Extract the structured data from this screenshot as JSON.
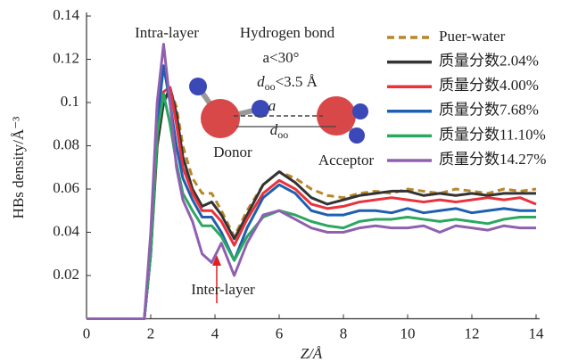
{
  "chart_data": {
    "type": "line",
    "xlabel": "Z/Å",
    "ylabel": "HBs density/Å⁻³",
    "x": [
      0,
      1.8,
      2.0,
      2.2,
      2.4,
      2.6,
      2.8,
      3.0,
      3.3,
      3.6,
      3.9,
      4.2,
      4.6,
      5.0,
      5.5,
      6.0,
      6.5,
      7.0,
      7.5,
      8.0,
      8.5,
      9.0,
      9.5,
      10,
      10.5,
      11,
      11.5,
      12,
      12.5,
      13,
      13.5,
      14
    ],
    "xlim": [
      0,
      14
    ],
    "xticks": [
      0,
      2,
      4,
      6,
      8,
      10,
      12,
      14
    ],
    "ylim": [
      0,
      0.14
    ],
    "yticks": [
      0.02,
      0.04,
      0.06,
      0.08,
      0.1,
      {
        "value": 0.12,
        "label": "0.12"
      },
      {
        "value": 0.14,
        "label": "0.14"
      }
    ],
    "legend": "upper right",
    "series": [
      {
        "name": "Puer-water",
        "color": "#b8862b",
        "dash": true,
        "values": [
          0,
          0,
          0.03,
          0.08,
          0.1,
          0.106,
          0.098,
          0.08,
          0.065,
          0.058,
          0.058,
          0.05,
          0.038,
          0.05,
          0.062,
          0.068,
          0.065,
          0.06,
          0.057,
          0.056,
          0.058,
          0.059,
          0.058,
          0.06,
          0.059,
          0.058,
          0.06,
          0.059,
          0.058,
          0.06,
          0.059,
          0.06
        ]
      },
      {
        "name": "质量分数2.04%",
        "color": "#333333",
        "values": [
          0,
          0,
          0.03,
          0.08,
          0.1,
          0.107,
          0.095,
          0.075,
          0.06,
          0.052,
          0.054,
          0.048,
          0.037,
          0.048,
          0.062,
          0.068,
          0.063,
          0.056,
          0.053,
          0.055,
          0.057,
          0.058,
          0.059,
          0.059,
          0.057,
          0.058,
          0.057,
          0.058,
          0.057,
          0.058,
          0.058,
          0.058
        ]
      },
      {
        "name": "质量分数4.00%",
        "color": "#e8323c",
        "values": [
          0,
          0,
          0.03,
          0.085,
          0.105,
          0.107,
          0.09,
          0.07,
          0.058,
          0.05,
          0.05,
          0.045,
          0.034,
          0.046,
          0.058,
          0.064,
          0.06,
          0.053,
          0.051,
          0.052,
          0.054,
          0.055,
          0.056,
          0.055,
          0.054,
          0.055,
          0.054,
          0.055,
          0.056,
          0.055,
          0.056,
          0.053
        ]
      },
      {
        "name": "质量分数7.68%",
        "color": "#1f5fb0",
        "values": [
          0,
          0,
          0.03,
          0.09,
          0.117,
          0.1,
          0.08,
          0.065,
          0.055,
          0.047,
          0.047,
          0.04,
          0.027,
          0.042,
          0.056,
          0.062,
          0.058,
          0.05,
          0.048,
          0.048,
          0.05,
          0.05,
          0.049,
          0.051,
          0.049,
          0.05,
          0.051,
          0.049,
          0.05,
          0.051,
          0.05,
          0.05
        ]
      },
      {
        "name": "质量分数11.10%",
        "color": "#2aa860",
        "values": [
          0,
          0,
          0.03,
          0.085,
          0.104,
          0.09,
          0.072,
          0.058,
          0.05,
          0.043,
          0.043,
          0.038,
          0.027,
          0.038,
          0.047,
          0.05,
          0.048,
          0.045,
          0.043,
          0.042,
          0.045,
          0.046,
          0.046,
          0.047,
          0.046,
          0.045,
          0.046,
          0.045,
          0.044,
          0.046,
          0.047,
          0.047
        ]
      },
      {
        "name": "质量分数14.27%",
        "color": "#9060b0",
        "values": [
          0,
          0,
          0.04,
          0.1,
          0.127,
          0.1,
          0.07,
          0.055,
          0.045,
          0.03,
          0.026,
          0.035,
          0.02,
          0.035,
          0.048,
          0.05,
          0.046,
          0.042,
          0.04,
          0.04,
          0.042,
          0.043,
          0.042,
          0.042,
          0.043,
          0.04,
          0.043,
          0.042,
          0.041,
          0.043,
          0.042,
          0.042
        ]
      }
    ],
    "annotations": [
      "Intra-layer",
      "Hydrogen bond",
      "a<30°",
      {
        "parts": [
          "d",
          "oo",
          "<3.5 Å"
        ]
      },
      "Donor",
      "Acceptor",
      "Inter-layer",
      "a",
      {
        "parts": [
          "d",
          "oo"
        ]
      }
    ]
  }
}
